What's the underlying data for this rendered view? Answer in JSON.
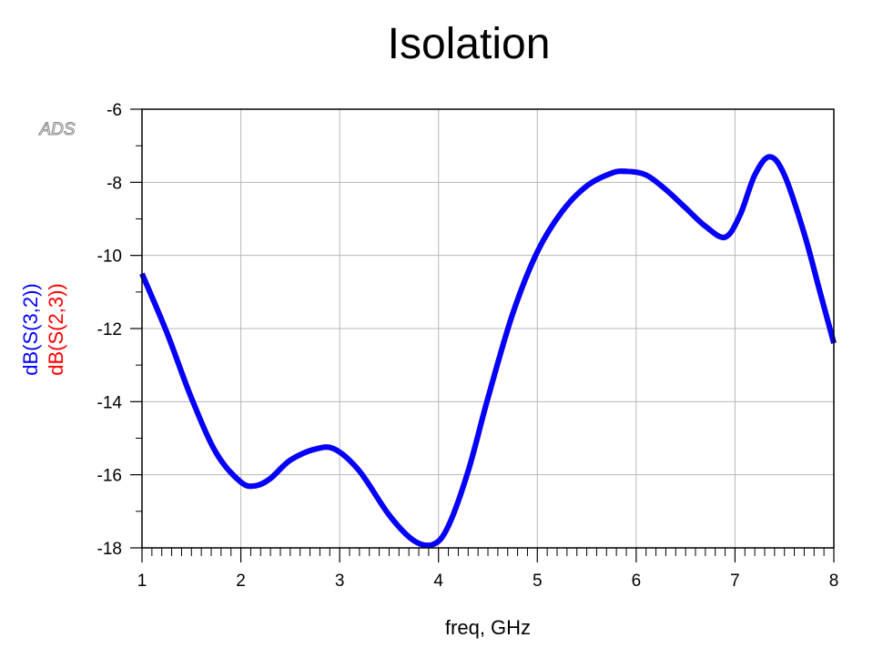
{
  "watermark": "ADS",
  "chart_data": {
    "type": "line",
    "title": "Isolation",
    "xlabel": "freq, GHz",
    "ylabels": [
      {
        "text": "dB(S(3,2))",
        "color": "#0000ff"
      },
      {
        "text": "dB(S(2,3))",
        "color": "#ff0000"
      }
    ],
    "xlim": [
      1,
      8
    ],
    "ylim": [
      -18,
      -6
    ],
    "x_ticks": [
      1,
      2,
      3,
      4,
      5,
      6,
      7,
      8
    ],
    "y_ticks": [
      -6,
      -8,
      -10,
      -12,
      -14,
      -16,
      -18
    ],
    "y_tick_labels": [
      "-6",
      "-8",
      "-10",
      "-12",
      "-14",
      "-16",
      "-18"
    ],
    "grid": true,
    "series": [
      {
        "name": "dB(S(3,2))",
        "color": "#0000ff",
        "x": [
          1.0,
          1.25,
          1.5,
          1.75,
          2.0,
          2.15,
          2.3,
          2.5,
          2.75,
          2.95,
          3.2,
          3.5,
          3.75,
          3.95,
          4.1,
          4.3,
          4.5,
          4.75,
          5.0,
          5.25,
          5.5,
          5.75,
          5.9,
          6.1,
          6.3,
          6.5,
          6.7,
          6.9,
          7.05,
          7.2,
          7.35,
          7.5,
          7.7,
          7.85,
          8.0
        ],
        "y": [
          -10.5,
          -12.1,
          -13.9,
          -15.4,
          -16.2,
          -16.3,
          -16.1,
          -15.6,
          -15.3,
          -15.3,
          -15.9,
          -17.1,
          -17.8,
          -17.9,
          -17.4,
          -15.9,
          -13.9,
          -11.6,
          -9.9,
          -8.8,
          -8.1,
          -7.75,
          -7.7,
          -7.8,
          -8.2,
          -8.7,
          -9.2,
          -9.5,
          -8.9,
          -7.8,
          -7.3,
          -7.8,
          -9.4,
          -10.9,
          -12.4
        ]
      },
      {
        "name": "dB(S(2,3))",
        "color": "#ff0000",
        "x": [
          1.0,
          1.25,
          1.5,
          1.75,
          2.0,
          2.15,
          2.3,
          2.5,
          2.75,
          2.95,
          3.2,
          3.5,
          3.75,
          3.95,
          4.1,
          4.3,
          4.5,
          4.75,
          5.0,
          5.25,
          5.5,
          5.75,
          5.9,
          6.1,
          6.3,
          6.5,
          6.7,
          6.9,
          7.05,
          7.2,
          7.35,
          7.5,
          7.7,
          7.85,
          8.0
        ],
        "y": [
          -10.5,
          -12.1,
          -13.9,
          -15.4,
          -16.2,
          -16.3,
          -16.1,
          -15.6,
          -15.3,
          -15.3,
          -15.9,
          -17.1,
          -17.8,
          -17.9,
          -17.4,
          -15.9,
          -13.9,
          -11.6,
          -9.9,
          -8.8,
          -8.1,
          -7.75,
          -7.7,
          -7.8,
          -8.2,
          -8.7,
          -9.2,
          -9.5,
          -8.9,
          -7.8,
          -7.3,
          -7.8,
          -9.4,
          -10.9,
          -12.4
        ]
      }
    ]
  }
}
